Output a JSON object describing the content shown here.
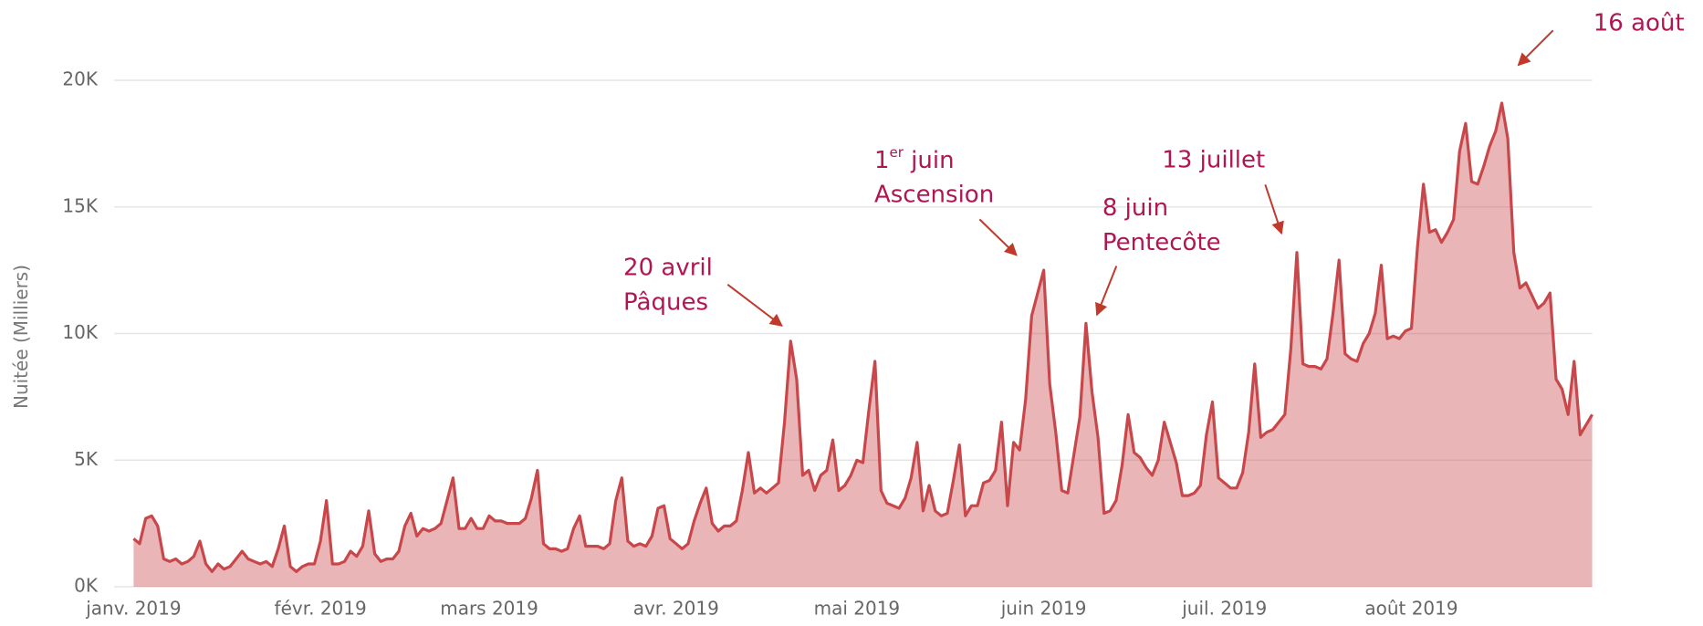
{
  "chart_data": {
    "type": "area",
    "y_label": "Nuitée (Milliers)",
    "color": "#c8474b",
    "grid": true,
    "ylim": [
      0,
      20000
    ],
    "yticks": [
      {
        "value": 0,
        "label": "0K"
      },
      {
        "value": 5000,
        "label": "5K"
      },
      {
        "value": 10000,
        "label": "10K"
      },
      {
        "value": 15000,
        "label": "15K"
      },
      {
        "value": 20000,
        "label": "20K"
      }
    ],
    "categories": [
      "janv. 2019",
      null,
      null,
      null,
      null,
      null,
      null,
      null,
      null,
      null,
      null,
      null,
      null,
      null,
      null,
      null,
      null,
      null,
      null,
      null,
      null,
      null,
      null,
      null,
      null,
      null,
      null,
      null,
      null,
      null,
      null,
      "févr. 2019",
      null,
      null,
      null,
      null,
      null,
      null,
      null,
      null,
      null,
      null,
      null,
      null,
      null,
      null,
      null,
      null,
      null,
      null,
      null,
      null,
      null,
      null,
      null,
      null,
      null,
      null,
      null,
      "mars 2019",
      null,
      null,
      null,
      null,
      null,
      null,
      null,
      null,
      null,
      null,
      null,
      null,
      null,
      null,
      null,
      null,
      null,
      null,
      null,
      null,
      null,
      null,
      null,
      null,
      null,
      null,
      null,
      null,
      null,
      null,
      "avr. 2019",
      null,
      null,
      null,
      null,
      null,
      null,
      null,
      null,
      null,
      null,
      null,
      null,
      null,
      null,
      null,
      null,
      null,
      null,
      null,
      null,
      null,
      null,
      null,
      null,
      null,
      null,
      null,
      null,
      null,
      "mai 2019",
      null,
      null,
      null,
      null,
      null,
      null,
      null,
      null,
      null,
      null,
      null,
      null,
      null,
      null,
      null,
      null,
      null,
      null,
      null,
      null,
      null,
      null,
      null,
      null,
      null,
      null,
      null,
      null,
      null,
      null,
      "juin 2019",
      null,
      null,
      null,
      null,
      null,
      null,
      null,
      null,
      null,
      null,
      null,
      null,
      null,
      null,
      null,
      null,
      null,
      null,
      null,
      null,
      null,
      null,
      null,
      null,
      null,
      null,
      null,
      null,
      null,
      "juil. 2019",
      null,
      null,
      null,
      null,
      null,
      null,
      null,
      null,
      null,
      null,
      null,
      null,
      null,
      null,
      null,
      null,
      null,
      null,
      null,
      null,
      null,
      null,
      null,
      null,
      null,
      null,
      null,
      null,
      null,
      null,
      "août 2019",
      null,
      null,
      null,
      null,
      null,
      null,
      null,
      null,
      null,
      null,
      null,
      null,
      null,
      null,
      null,
      null,
      null,
      null,
      null,
      null,
      null,
      null,
      null,
      null,
      null,
      null,
      null,
      null,
      null,
      null
    ],
    "values": [
      1900,
      1700,
      2700,
      2800,
      2400,
      1100,
      1000,
      1100,
      900,
      1000,
      1200,
      1800,
      900,
      600,
      900,
      700,
      800,
      1100,
      1400,
      1100,
      1000,
      900,
      1000,
      800,
      1500,
      2400,
      800,
      600,
      800,
      900,
      900,
      1800,
      3400,
      900,
      900,
      1000,
      1400,
      1200,
      1600,
      3000,
      1300,
      1000,
      1100,
      1100,
      1400,
      2400,
      2900,
      2000,
      2300,
      2200,
      2300,
      2500,
      3400,
      4300,
      2300,
      2300,
      2700,
      2300,
      2300,
      2800,
      2600,
      2600,
      2500,
      2500,
      2500,
      2700,
      3500,
      4600,
      1700,
      1500,
      1500,
      1400,
      1500,
      2300,
      2800,
      1600,
      1600,
      1600,
      1500,
      1700,
      3400,
      4300,
      1800,
      1600,
      1700,
      1600,
      2000,
      3100,
      3200,
      1900,
      1700,
      1500,
      1700,
      2600,
      3300,
      3900,
      2500,
      2200,
      2400,
      2400,
      2600,
      3800,
      5300,
      3700,
      3900,
      3700,
      3900,
      4100,
      6500,
      9700,
      8200,
      4400,
      4600,
      3800,
      4400,
      4600,
      5800,
      3800,
      4000,
      4400,
      5000,
      4900,
      7000,
      8900,
      3800,
      3300,
      3200,
      3100,
      3500,
      4300,
      5700,
      3000,
      4000,
      3000,
      2800,
      2900,
      4200,
      5600,
      2800,
      3200,
      3200,
      4100,
      4200,
      4600,
      6500,
      3200,
      5700,
      5400,
      7400,
      10700,
      11600,
      12500,
      8000,
      6100,
      3800,
      3700,
      5200,
      6700,
      10400,
      7700,
      5900,
      2900,
      3000,
      3400,
      4800,
      6800,
      5300,
      5100,
      4700,
      4400,
      5000,
      6500,
      5700,
      4900,
      3600,
      3600,
      3700,
      4000,
      6000,
      7300,
      4300,
      4100,
      3900,
      3900,
      4500,
      6100,
      8800,
      5900,
      6100,
      6200,
      6500,
      6800,
      9400,
      13200,
      8800,
      8700,
      8700,
      8600,
      9000,
      10800,
      12900,
      9200,
      9000,
      8900,
      9600,
      10000,
      10800,
      12700,
      9800,
      9900,
      9800,
      10100,
      10200,
      13400,
      15900,
      14000,
      14100,
      13600,
      14000,
      14500,
      17200,
      18300,
      16000,
      15900,
      16600,
      17400,
      18000,
      19100,
      17700,
      13200,
      11800,
      12000,
      11500,
      11000,
      11200,
      11600,
      8200,
      7800,
      6800,
      8900,
      6000,
      6400,
      6800
    ],
    "annotations": [
      {
        "lines": [
          "20 avril",
          "Pâques"
        ]
      },
      {
        "lines": [
          {
            "base": "1",
            "sup": "er",
            "after": " juin"
          },
          "Ascension"
        ]
      },
      {
        "lines": [
          "8 juin",
          "Pentecôte"
        ]
      },
      {
        "lines": [
          "13 juillet"
        ]
      },
      {
        "lines": [
          "16 août"
        ]
      }
    ]
  }
}
